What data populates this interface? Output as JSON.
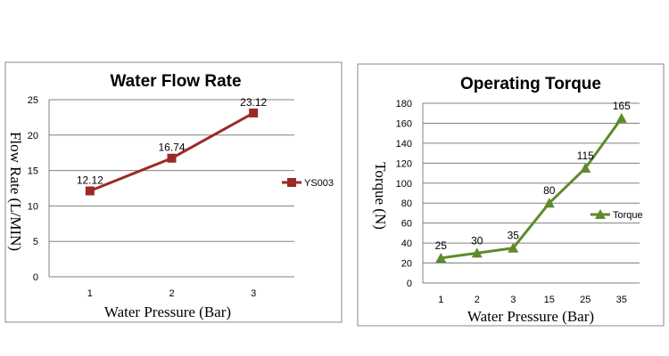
{
  "chart_data": [
    {
      "type": "line",
      "title": "Water Flow Rate",
      "xlabel": "Water  Pressure  (Bar)",
      "ylabel": "Flow  Rate  (L/MIN)",
      "categories": [
        "1",
        "2",
        "3"
      ],
      "series": [
        {
          "name": "YS003",
          "values": [
            12.12,
            16.74,
            23.12
          ],
          "labels": [
            "12.12",
            "16.74",
            "23.12"
          ],
          "color": "#9b2a26",
          "marker": "square"
        }
      ],
      "ylim": [
        0,
        25
      ],
      "yticks": [
        "0",
        "5",
        "10",
        "15",
        "20",
        "25"
      ],
      "grid": true,
      "legend": "right"
    },
    {
      "type": "line",
      "title": "Operating Torque",
      "xlabel": "Water  Pressure  (Bar)",
      "ylabel": "Torque  (N)",
      "categories": [
        "1",
        "2",
        "3",
        "15",
        "25",
        "35"
      ],
      "series": [
        {
          "name": "Torque",
          "values": [
            25,
            30,
            35,
            80,
            115,
            165
          ],
          "labels": [
            "25",
            "30",
            "35",
            "80",
            "115",
            "165"
          ],
          "color": "#5e8a2b",
          "marker": "triangle"
        }
      ],
      "ylim": [
        0,
        180
      ],
      "yticks": [
        "0",
        "20",
        "40",
        "60",
        "80",
        "100",
        "120",
        "140",
        "160",
        "180"
      ],
      "grid": true,
      "legend": "right"
    }
  ]
}
